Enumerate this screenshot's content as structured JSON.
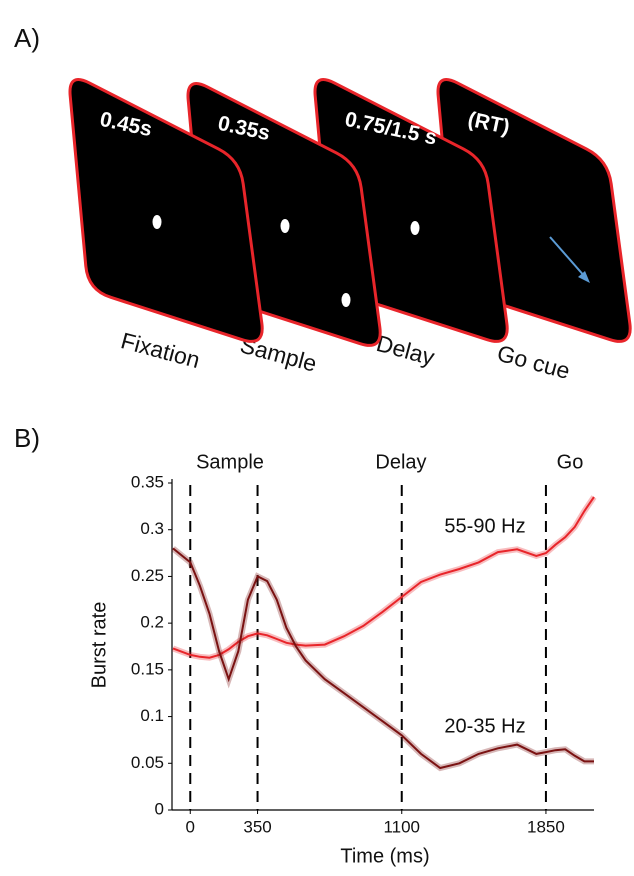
{
  "panel_a": {
    "label": "A)",
    "screens": [
      {
        "duration": "0.45s",
        "name": "Fixation"
      },
      {
        "duration": "0.35s",
        "name": "Sample"
      },
      {
        "duration": "0.75/1.5 s",
        "name": "Delay"
      },
      {
        "duration": "(RT)",
        "name": "Go cue"
      }
    ]
  },
  "chart_data": {
    "type": "line",
    "panel_label": "B)",
    "x_label": "Time (ms)",
    "y_label": "Burst rate",
    "x": [
      -90,
      0,
      50,
      100,
      150,
      200,
      250,
      300,
      350,
      400,
      450,
      500,
      550,
      600,
      700,
      800,
      900,
      1000,
      1100,
      1200,
      1300,
      1400,
      1500,
      1600,
      1700,
      1800,
      1850,
      1900,
      1950,
      2000,
      2050,
      2100
    ],
    "series": [
      {
        "name": "55-90 Hz",
        "color": "#e8252a",
        "values": [
          0.173,
          0.166,
          0.164,
          0.163,
          0.166,
          0.172,
          0.18,
          0.186,
          0.189,
          0.187,
          0.183,
          0.179,
          0.177,
          0.176,
          0.177,
          0.186,
          0.197,
          0.212,
          0.228,
          0.244,
          0.252,
          0.258,
          0.265,
          0.276,
          0.279,
          0.272,
          0.275,
          0.284,
          0.292,
          0.303,
          0.32,
          0.335
        ]
      },
      {
        "name": "20-35 Hz",
        "color": "#7a1212",
        "values": [
          0.28,
          0.265,
          0.24,
          0.21,
          0.17,
          0.14,
          0.17,
          0.225,
          0.25,
          0.245,
          0.225,
          0.195,
          0.175,
          0.16,
          0.14,
          0.125,
          0.11,
          0.095,
          0.08,
          0.06,
          0.045,
          0.05,
          0.06,
          0.066,
          0.07,
          0.06,
          0.062,
          0.064,
          0.065,
          0.058,
          0.052,
          0.052
        ]
      }
    ],
    "xlim": [
      -95,
      2100
    ],
    "ylim": [
      0,
      0.35
    ],
    "xticks": [
      0,
      350,
      1100,
      1850
    ],
    "yticks": [
      0,
      0.05,
      0.1,
      0.15,
      0.2,
      0.25,
      0.3,
      0.35
    ],
    "events": [
      {
        "x": 0,
        "label": "Sample"
      },
      {
        "x": 350
      },
      {
        "x": 1100,
        "label": "Delay"
      },
      {
        "x": 1850,
        "label": "Go"
      }
    ]
  }
}
